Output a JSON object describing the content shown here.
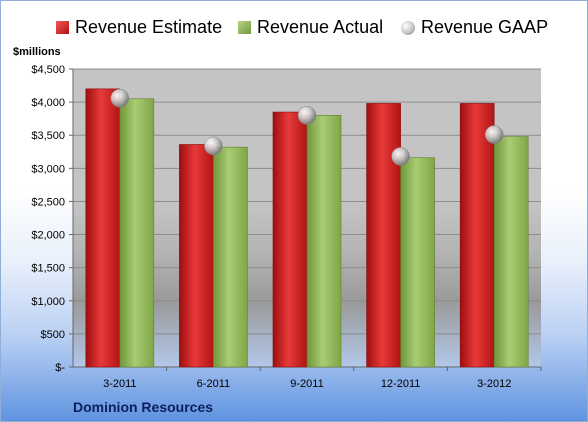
{
  "chart_data": {
    "type": "bar",
    "title": "",
    "unit_label": "$millions",
    "categories": [
      "3-2011",
      "6-2011",
      "9-2011",
      "12-2011",
      "3-2012"
    ],
    "series": [
      {
        "name": "Revenue Estimate",
        "type": "bar",
        "color": "#c81e1e",
        "values": [
          4200,
          3360,
          3850,
          3980,
          3980
        ]
      },
      {
        "name": "Revenue Actual",
        "type": "bar",
        "color": "#8db553",
        "values": [
          4050,
          3320,
          3800,
          3160,
          3480
        ]
      },
      {
        "name": "Revenue GAAP",
        "type": "marker",
        "color": "#a8a8a8",
        "values": [
          4060,
          3340,
          3800,
          3180,
          3510
        ]
      }
    ],
    "y_ticks": [
      "$-",
      "$500",
      "$1,000",
      "$1,500",
      "$2,000",
      "$2,500",
      "$3,000",
      "$3,500",
      "$4,000",
      "$4,500"
    ],
    "ylim": [
      0,
      4500
    ],
    "y_tick_step": 500,
    "grid": true,
    "legend_position": "top"
  },
  "legend": {
    "estimate": "Revenue Estimate",
    "actual": "Revenue Actual",
    "gaap": "Revenue GAAP"
  },
  "company": "Dominion Resources"
}
